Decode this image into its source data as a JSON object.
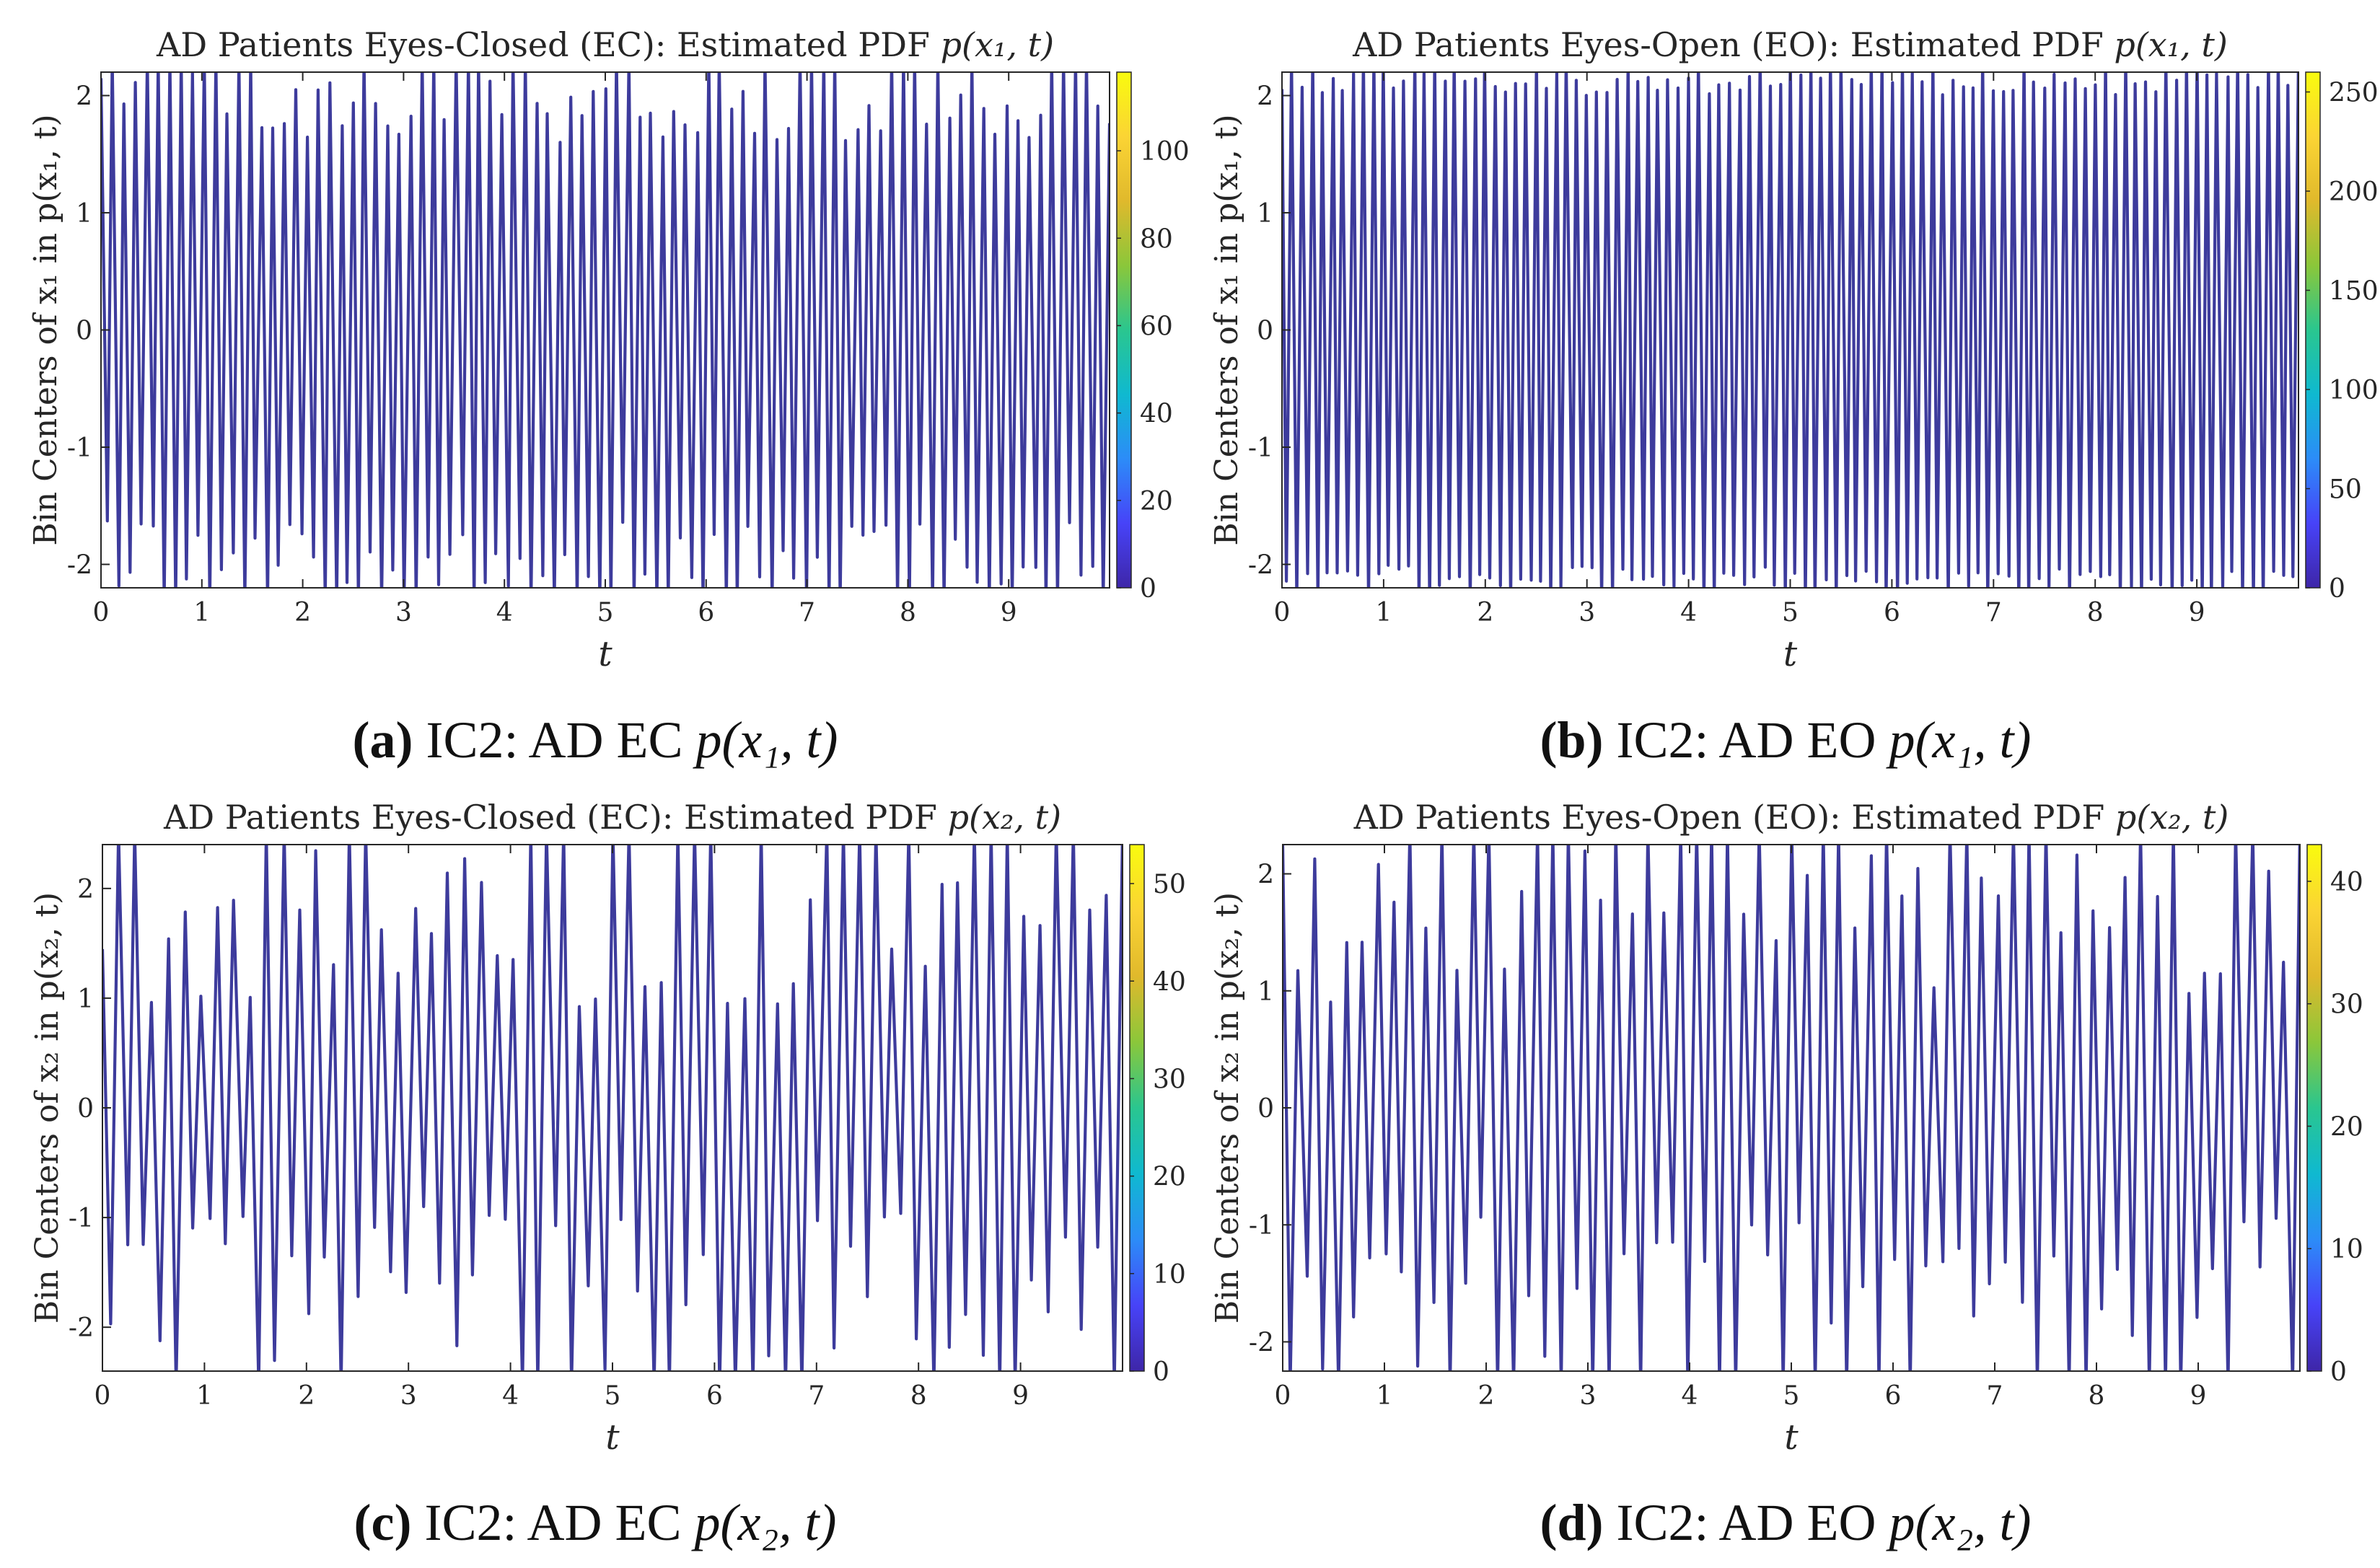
{
  "colors": {
    "signal": "#3d3b9c",
    "axis": "#262626",
    "colormap": [
      "#3e26a8",
      "#4743f8",
      "#2c8cf8",
      "#0fb9d0",
      "#2ac68f",
      "#8bc73a",
      "#e0b92c",
      "#fbd434",
      "#f9fb0e"
    ]
  },
  "chart_data": [
    {
      "type": "line",
      "id": "a",
      "title_main": "AD Patients Eyes-Closed (EC): Estimated PDF",
      "title_math": "p(x₁, t)",
      "xlabel": "t",
      "ylabel": "Bin Centers of x₁ in p(x₁, t)",
      "xlim": [
        0,
        10
      ],
      "ylim": [
        -2.2,
        2.2
      ],
      "xticks": [
        "0",
        "1",
        "2",
        "3",
        "4",
        "5",
        "6",
        "7",
        "8",
        "9"
      ],
      "yticks": [
        {
          "v": 2,
          "label": "2"
        },
        {
          "v": 1,
          "label": "1"
        },
        {
          "v": 0,
          "label": "0"
        },
        {
          "v": -1,
          "label": "-1"
        },
        {
          "v": -2,
          "label": "-2"
        }
      ],
      "colorbar": {
        "min": 0,
        "max": 118,
        "ticks": [
          "0",
          "20",
          "40",
          "60",
          "80",
          "100"
        ]
      },
      "signal": {
        "description": "dense oscillation",
        "approx_cycles": 88,
        "amp_min": 1.6,
        "amp_max": 2.2,
        "seed": 7
      },
      "caption": {
        "tag": "(a)",
        "text": "IC2: AD EC",
        "math": "p(x₁, t)"
      }
    },
    {
      "type": "line",
      "id": "b",
      "title_main": "AD Patients Eyes-Open (EO): Estimated PDF",
      "title_math": "p(x₁, t)",
      "xlabel": "t",
      "ylabel": "Bin Centers of x₁ in p(x₁, t)",
      "xlim": [
        0,
        10
      ],
      "ylim": [
        -2.2,
        2.2
      ],
      "xticks": [
        "0",
        "1",
        "2",
        "3",
        "4",
        "5",
        "6",
        "7",
        "8",
        "9"
      ],
      "yticks": [
        {
          "v": 2,
          "label": "2"
        },
        {
          "v": 1,
          "label": "1"
        },
        {
          "v": 0,
          "label": "0"
        },
        {
          "v": -1,
          "label": "-1"
        },
        {
          "v": -2,
          "label": "-2"
        }
      ],
      "colorbar": {
        "min": 0,
        "max": 260,
        "ticks": [
          "0",
          "50",
          "100",
          "150",
          "200",
          "250"
        ]
      },
      "signal": {
        "description": "regular dense oscillation",
        "approx_cycles": 100,
        "amp_min": 2.0,
        "amp_max": 2.2,
        "seed": 11
      },
      "caption": {
        "tag": "(b)",
        "text": "IC2: AD EO",
        "math": "p(x₁, t)"
      }
    },
    {
      "type": "line",
      "id": "c",
      "title_main": "AD Patients Eyes-Closed (EC): Estimated PDF",
      "title_math": "p(x₂, t)",
      "xlabel": "t",
      "ylabel": "Bin Centers of x₂ in p(x₂, t)",
      "xlim": [
        0,
        10
      ],
      "ylim": [
        -2.4,
        2.4
      ],
      "xticks": [
        "0",
        "1",
        "2",
        "3",
        "4",
        "5",
        "6",
        "7",
        "8",
        "9"
      ],
      "yticks": [
        {
          "v": 2,
          "label": "2"
        },
        {
          "v": 1,
          "label": "1"
        },
        {
          "v": 0,
          "label": "0"
        },
        {
          "v": -1,
          "label": "-1"
        },
        {
          "v": -2,
          "label": "-2"
        }
      ],
      "colorbar": {
        "min": 0,
        "max": 54,
        "ticks": [
          "0",
          "10",
          "20",
          "30",
          "40",
          "50"
        ]
      },
      "signal": {
        "description": "irregular oscillation",
        "approx_cycles": 62,
        "amp_min": 0.9,
        "amp_max": 2.4,
        "seed": 23
      },
      "caption": {
        "tag": "(c)",
        "text": "IC2: AD EC",
        "math": "p(x₂, t)"
      }
    },
    {
      "type": "line",
      "id": "d",
      "title_main": "AD Patients Eyes-Open (EO): Estimated PDF",
      "title_math": "p(x₂, t)",
      "xlabel": "t",
      "ylabel": "Bin Centers of x₂ in p(x₂, t)",
      "xlim": [
        0,
        10
      ],
      "ylim": [
        -2.25,
        2.25
      ],
      "xticks": [
        "0",
        "1",
        "2",
        "3",
        "4",
        "5",
        "6",
        "7",
        "8",
        "9"
      ],
      "yticks": [
        {
          "v": 2,
          "label": "2"
        },
        {
          "v": 1,
          "label": "1"
        },
        {
          "v": 0,
          "label": "0"
        },
        {
          "v": -1,
          "label": "-1"
        },
        {
          "v": -2,
          "label": "-2"
        }
      ],
      "colorbar": {
        "min": 0,
        "max": 43,
        "ticks": [
          "0",
          "10",
          "20",
          "30",
          "40"
        ]
      },
      "signal": {
        "description": "irregular oscillation",
        "approx_cycles": 64,
        "amp_min": 0.9,
        "amp_max": 2.25,
        "seed": 41
      },
      "caption": {
        "tag": "(d)",
        "text": "IC2: AD EO",
        "math": "p(x₂, t)"
      }
    }
  ]
}
